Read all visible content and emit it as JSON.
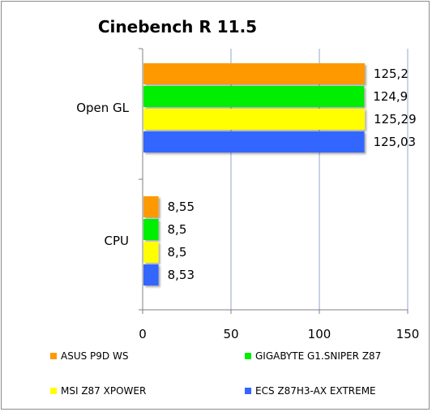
{
  "chart_data": {
    "type": "bar",
    "orientation": "horizontal",
    "title": "Cinebench R 11.5",
    "categories": [
      "Open GL",
      "CPU"
    ],
    "series": [
      {
        "name": "ASUS P9D WS",
        "color": "#ff9900",
        "values": [
          125.2,
          8.55
        ],
        "labels": [
          "125,2",
          "8,55"
        ]
      },
      {
        "name": "GIGABYTE G1.SNIPER Z87",
        "color": "#00ee00",
        "values": [
          124.9,
          8.5
        ],
        "labels": [
          "124,9",
          "8,5"
        ]
      },
      {
        "name": "MSI Z87 XPOWER",
        "color": "#ffff00",
        "values": [
          125.29,
          8.5
        ],
        "labels": [
          "125,29",
          "8,5"
        ]
      },
      {
        "name": "ECS Z87H3-AX EXTREME",
        "color": "#3366ff",
        "values": [
          125.03,
          8.53
        ],
        "labels": [
          "125,03",
          "8,53"
        ]
      }
    ],
    "xlim": [
      0,
      150
    ],
    "xticks": [
      0,
      50,
      100,
      150
    ],
    "grid": true,
    "legend": "bottom"
  }
}
